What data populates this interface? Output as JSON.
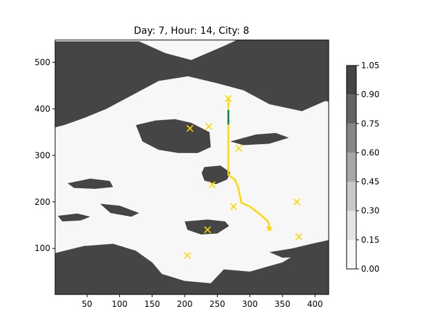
{
  "chart_data": {
    "type": "heatmap",
    "title": "Day: 7, Hour: 14, City: 8",
    "xlim": [
      1,
      421
    ],
    "ylim": [
      1,
      548
    ],
    "x_ticks": [
      50,
      100,
      150,
      200,
      250,
      300,
      350,
      400
    ],
    "y_ticks": [
      100,
      200,
      300,
      400,
      500
    ],
    "grid": false,
    "colorbar": {
      "levels": [
        0.0,
        0.15,
        0.3,
        0.45,
        0.6,
        0.75,
        0.9,
        1.05
      ],
      "tick_labels": [
        "0.00",
        "0.15",
        "0.30",
        "0.45",
        "0.60",
        "0.75",
        "0.90",
        "1.05"
      ],
      "colors": [
        "#f7f7f7",
        "#e3e3e3",
        "#c8c8c8",
        "#a7a7a7",
        "#858585",
        "#636363",
        "#454545",
        "#252525"
      ]
    },
    "field_regions": [
      {
        "value": 1.0,
        "points": [
          [
            1,
            545
          ],
          [
            130,
            545
          ],
          [
            170,
            520
          ],
          [
            210,
            505
          ],
          [
            260,
            535
          ],
          [
            280,
            548
          ],
          [
            421,
            548
          ],
          [
            421,
            420
          ],
          [
            380,
            395
          ],
          [
            330,
            410
          ],
          [
            290,
            440
          ],
          [
            250,
            455
          ],
          [
            205,
            470
          ],
          [
            160,
            460
          ],
          [
            120,
            430
          ],
          [
            80,
            400
          ],
          [
            45,
            380
          ],
          [
            15,
            365
          ],
          [
            1,
            360
          ]
        ]
      },
      {
        "value": 1.0,
        "points": [
          [
            1,
            90
          ],
          [
            45,
            105
          ],
          [
            90,
            110
          ],
          [
            125,
            95
          ],
          [
            150,
            70
          ],
          [
            165,
            45
          ],
          [
            200,
            30
          ],
          [
            240,
            25
          ],
          [
            260,
            55
          ],
          [
            300,
            50
          ],
          [
            350,
            70
          ],
          [
            380,
            95
          ],
          [
            421,
            110
          ],
          [
            421,
            1
          ],
          [
            1,
            1
          ]
        ]
      },
      {
        "value": 1.0,
        "points": [
          [
            125,
            365
          ],
          [
            155,
            375
          ],
          [
            185,
            378
          ],
          [
            210,
            370
          ],
          [
            238,
            350
          ],
          [
            240,
            318
          ],
          [
            220,
            305
          ],
          [
            190,
            305
          ],
          [
            160,
            312
          ],
          [
            135,
            330
          ]
        ]
      },
      {
        "value": 1.0,
        "points": [
          [
            305,
            470
          ],
          [
            345,
            455
          ],
          [
            380,
            430
          ],
          [
            421,
            415
          ],
          [
            421,
            460
          ],
          [
            385,
            470
          ],
          [
            350,
            480
          ],
          [
            320,
            482
          ]
        ]
      },
      {
        "value": 1.0,
        "points": [
          [
            230,
            275
          ],
          [
            255,
            278
          ],
          [
            270,
            263
          ],
          [
            265,
            248
          ],
          [
            248,
            238
          ],
          [
            230,
            246
          ],
          [
            226,
            262
          ]
        ]
      },
      {
        "value": 1.0,
        "points": [
          [
            200,
            158
          ],
          [
            235,
            162
          ],
          [
            262,
            158
          ],
          [
            268,
            148
          ],
          [
            250,
            132
          ],
          [
            225,
            130
          ],
          [
            204,
            140
          ]
        ]
      },
      {
        "value": 1.0,
        "points": [
          [
            330,
            92
          ],
          [
            365,
            100
          ],
          [
            395,
            110
          ],
          [
            421,
            118
          ],
          [
            421,
            85
          ],
          [
            390,
            82
          ],
          [
            350,
            80
          ]
        ]
      },
      {
        "value": 1.0,
        "points": [
          [
            20,
            240
          ],
          [
            55,
            250
          ],
          [
            85,
            245
          ],
          [
            90,
            232
          ],
          [
            62,
            228
          ],
          [
            30,
            230
          ]
        ]
      },
      {
        "value": 1.0,
        "points": [
          [
            270,
            330
          ],
          [
            310,
            345
          ],
          [
            340,
            348
          ],
          [
            360,
            338
          ],
          [
            330,
            325
          ],
          [
            290,
            322
          ]
        ]
      },
      {
        "value": 1.0,
        "points": [
          [
            360,
            460
          ],
          [
            395,
            455
          ],
          [
            420,
            445
          ],
          [
            421,
            470
          ],
          [
            390,
            480
          ],
          [
            365,
            478
          ]
        ]
      },
      {
        "value": 1.0,
        "points": [
          [
            5,
            170
          ],
          [
            35,
            175
          ],
          [
            55,
            168
          ],
          [
            40,
            160
          ],
          [
            12,
            158
          ]
        ]
      },
      {
        "value": 1.0,
        "points": [
          [
            70,
            196
          ],
          [
            100,
            192
          ],
          [
            130,
            176
          ],
          [
            118,
            168
          ],
          [
            86,
            176
          ]
        ]
      }
    ],
    "path_segments": [
      {
        "color": "#ffd700",
        "points": [
          [
            267,
            425
          ],
          [
            267,
            400
          ]
        ]
      },
      {
        "color": "#00803c",
        "points": [
          [
            267,
            398
          ],
          [
            267,
            366
          ]
        ]
      },
      {
        "color": "#ffd700",
        "points": [
          [
            267,
            366
          ],
          [
            267,
            258
          ],
          [
            277,
            248
          ],
          [
            282,
            232
          ],
          [
            285,
            212
          ],
          [
            287,
            198
          ],
          [
            300,
            190
          ],
          [
            314,
            175
          ],
          [
            328,
            158
          ],
          [
            330,
            143
          ]
        ]
      }
    ],
    "cities_x": [
      [
        267,
        422
      ],
      [
        208,
        358
      ],
      [
        237,
        362
      ],
      [
        283,
        315
      ],
      [
        242,
        237
      ],
      [
        275,
        190
      ],
      [
        372,
        200
      ],
      [
        235,
        140
      ],
      [
        375,
        125
      ],
      [
        204,
        85
      ]
    ],
    "destination_star": [
      330,
      143
    ]
  }
}
